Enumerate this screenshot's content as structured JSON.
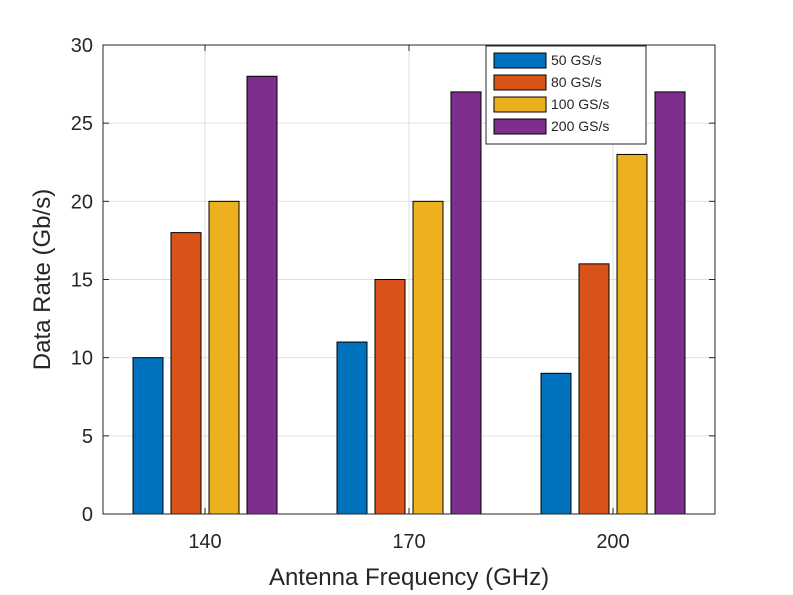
{
  "chart_data": {
    "type": "bar",
    "title": "",
    "xlabel": "Antenna Frequency (GHz)",
    "ylabel": "Data Rate (Gb/s)",
    "categories": [
      "140",
      "170",
      "200"
    ],
    "series": [
      {
        "name": "50 GS/s",
        "values": [
          10,
          11,
          9
        ],
        "color": "#0072BD"
      },
      {
        "name": "80 GS/s",
        "values": [
          18,
          15,
          16
        ],
        "color": "#D95319"
      },
      {
        "name": "100 GS/s",
        "values": [
          20,
          20,
          23
        ],
        "color": "#EDB120"
      },
      {
        "name": "200 GS/s",
        "values": [
          28,
          27,
          27
        ],
        "color": "#7E2F8E"
      }
    ],
    "ylim": [
      0,
      30
    ],
    "yticks": [
      0,
      5,
      10,
      15,
      20,
      25,
      30
    ],
    "grid": true,
    "legend_position": "top-right"
  }
}
